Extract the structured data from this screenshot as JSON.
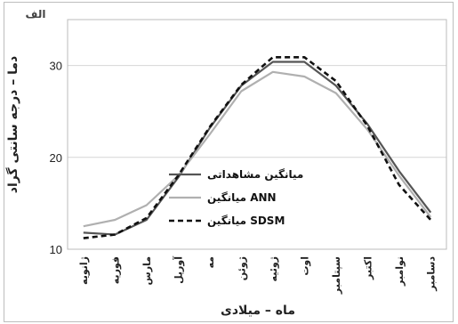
{
  "panel_label": "الف",
  "chart_data": {
    "type": "line",
    "categories": [
      "ژانویه",
      "فوریه",
      "مارس",
      "آوریل",
      "مه",
      "ژوئن",
      "ژوئیه",
      "اوت",
      "سپتامبر",
      "اکتبر",
      "نوامبر",
      "دسامبر"
    ],
    "xlabel": "ماه – میلادی",
    "ylabel": "دما – درجه سانتی گراد",
    "ylim": [
      10,
      35
    ],
    "yticks": [
      10,
      20,
      30
    ],
    "grid": true,
    "legend": "center-right",
    "series": [
      {
        "name": "میانگین مشاهداتی",
        "color": "#555555",
        "dash": "solid",
        "values": [
          11.8,
          11.6,
          13.2,
          17.8,
          23.2,
          27.8,
          30.4,
          30.4,
          27.8,
          23.6,
          18.5,
          14.0
        ]
      },
      {
        "name": "میانگین ANN",
        "color": "#b0b0b0",
        "dash": "solid",
        "values": [
          12.5,
          13.2,
          14.8,
          18.0,
          22.5,
          27.2,
          29.3,
          28.8,
          27.0,
          23.0,
          18.0,
          13.5
        ]
      },
      {
        "name": "میانگین SDSM",
        "color": "#111111",
        "dash": "dashed",
        "values": [
          11.2,
          11.6,
          13.4,
          18.0,
          23.3,
          27.9,
          30.9,
          30.9,
          28.3,
          23.4,
          17.0,
          13.2
        ]
      }
    ]
  }
}
